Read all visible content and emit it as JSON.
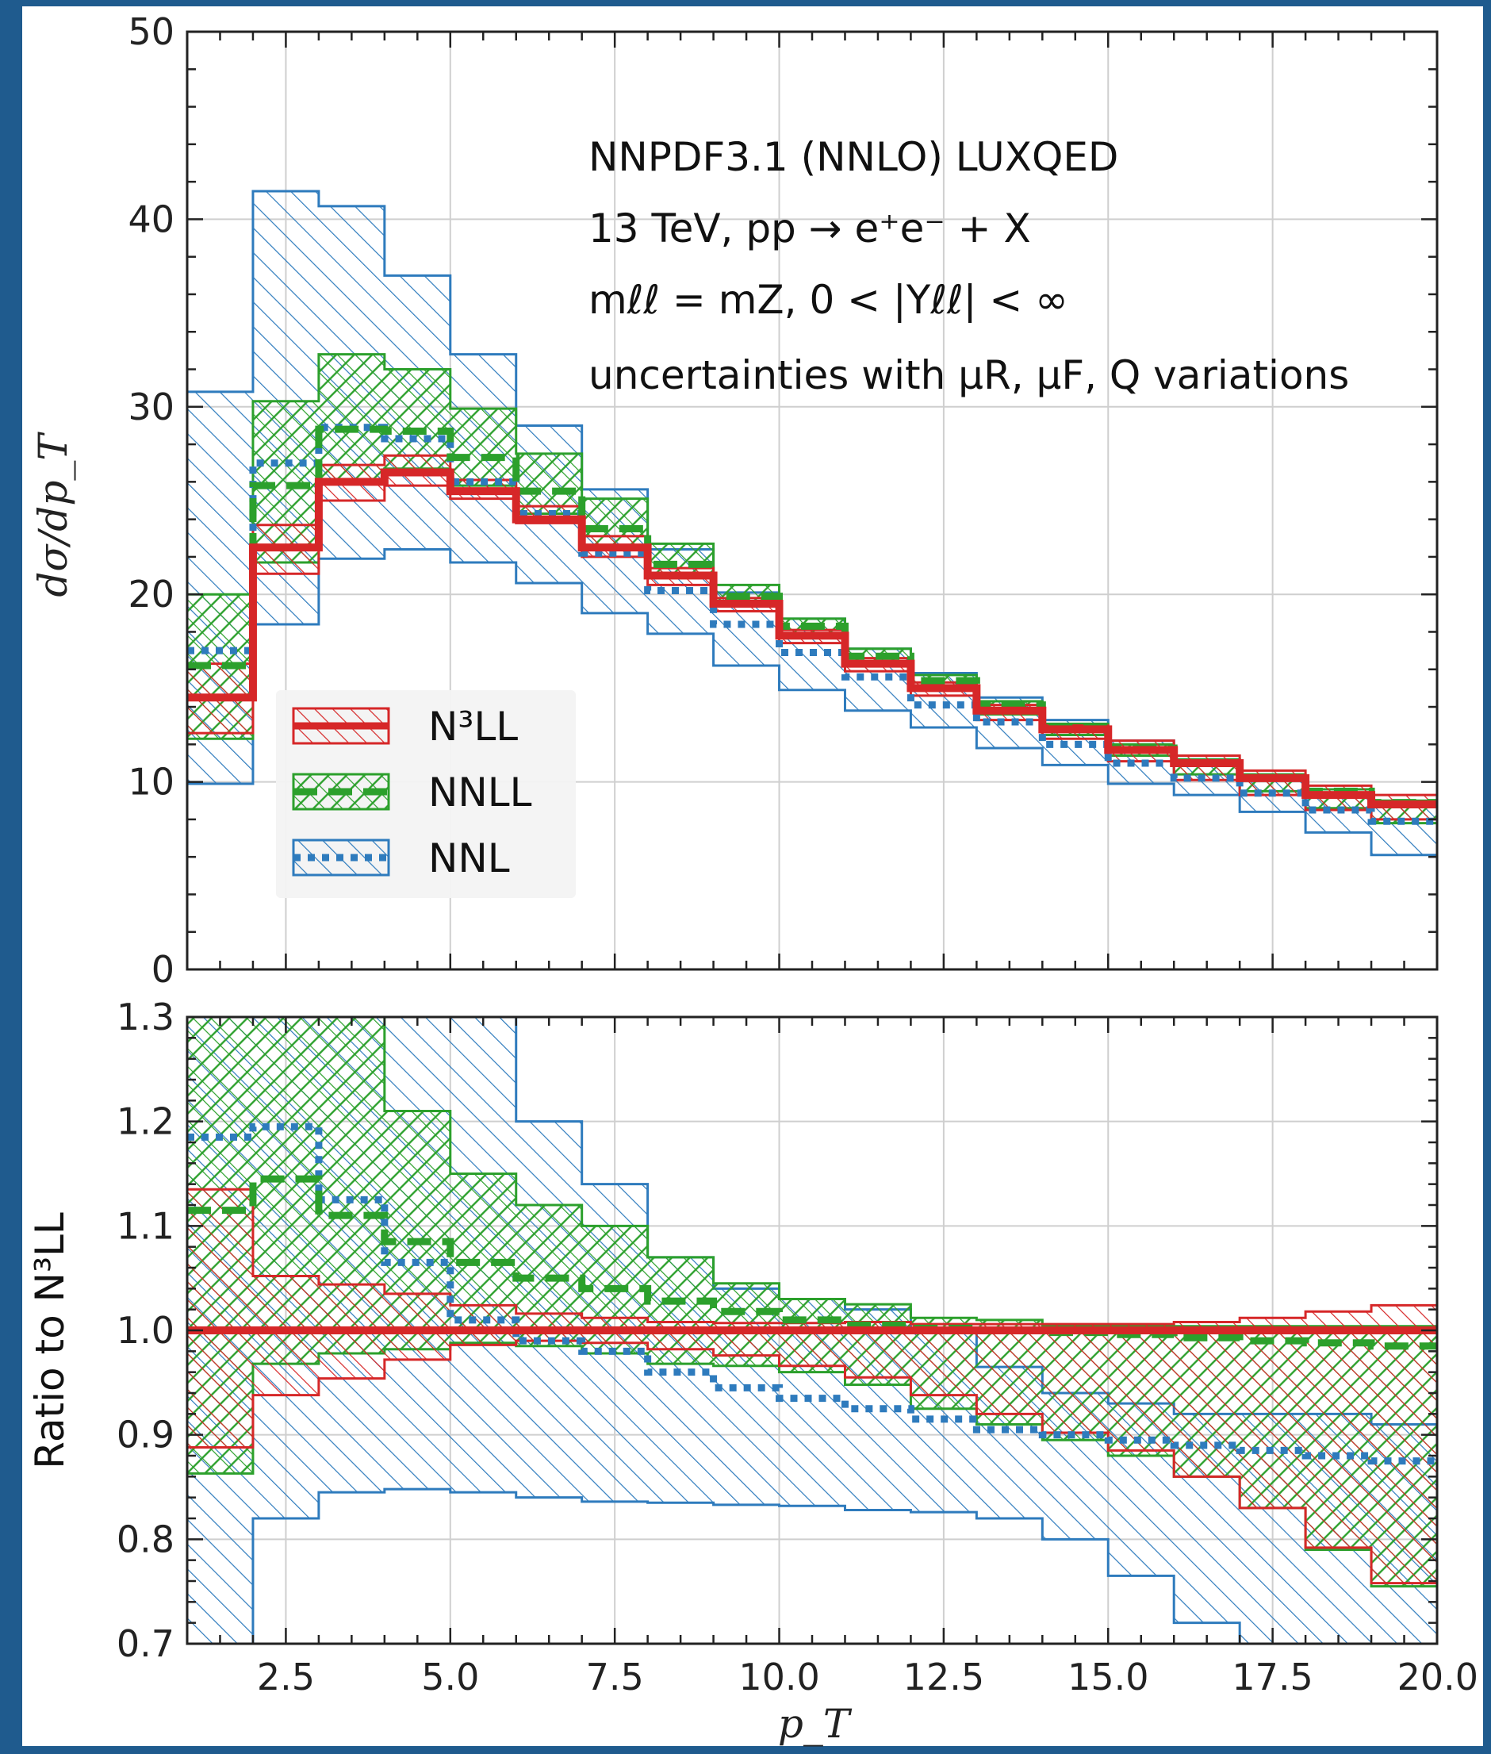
{
  "chart_data": [
    {
      "type": "line",
      "panel": "top",
      "ylabel": "dσ/dp_T",
      "ylim": [
        0,
        50
      ],
      "xlim": [
        1,
        20
      ],
      "yticks": [
        0,
        10,
        20,
        30,
        40,
        50
      ],
      "grid": true,
      "legend_position": "left",
      "annotations": [
        "NNPDF3.1 (NNLO) LUXQED",
        "13 TeV, pp → e⁺e⁻ + X",
        "mℓℓ = mZ, 0 < |Yℓℓ| < ∞",
        "uncertainties with μR, μF, Q variations"
      ],
      "bin_edges": [
        1,
        2,
        3,
        4,
        5,
        6,
        7,
        8,
        9,
        10,
        11,
        12,
        13,
        14,
        15,
        16,
        17,
        18,
        19,
        20
      ],
      "series": [
        {
          "name": "N³LL",
          "color": "#d62728",
          "style": "solid",
          "values": [
            14.5,
            22.5,
            26,
            26.5,
            25.5,
            24,
            22.5,
            21,
            19.5,
            17.8,
            16.3,
            15,
            13.8,
            12.8,
            11.7,
            11,
            10.2,
            9.3,
            8.8
          ],
          "upper": [
            16.3,
            23.7,
            26.9,
            27.4,
            26.1,
            24.7,
            23.1,
            21.4,
            19.8,
            18.1,
            16.6,
            15.3,
            14.1,
            13,
            12.2,
            11.4,
            10.6,
            9.8,
            9.3
          ],
          "lower": [
            12.6,
            21.1,
            25,
            25.8,
            25.1,
            23.8,
            22,
            20.5,
            19.1,
            17.4,
            15.9,
            14.6,
            13.3,
            12.3,
            11.1,
            10.1,
            9.3,
            8.5,
            8
          ]
        },
        {
          "name": "NNLL",
          "color": "#2ca02c",
          "style": "dashed",
          "values": [
            16.2,
            25.8,
            28.8,
            28.7,
            27.3,
            25.5,
            23.5,
            21.6,
            19.9,
            18.3,
            16.7,
            15.4,
            14.1,
            12.9,
            11.8,
            11,
            10.2,
            9.5,
            8.9
          ],
          "upper": [
            20,
            30.3,
            32.8,
            32,
            29.9,
            27.5,
            25.1,
            22.7,
            20.5,
            18.7,
            17.1,
            15.7,
            14.3,
            13.1,
            12,
            11.2,
            10.4,
            9.6,
            9
          ],
          "lower": [
            12.3,
            21.7,
            26.1,
            26.7,
            25.8,
            24.3,
            22.6,
            20.9,
            19.4,
            17.9,
            16.3,
            15,
            13.6,
            12.5,
            11.4,
            10.4,
            9.5,
            8.6,
            7.8
          ]
        },
        {
          "name": "NNL",
          "color": "#2e7bbd",
          "style": "dotted",
          "values": [
            17,
            27,
            28.9,
            28.3,
            26,
            24.3,
            22.2,
            20.2,
            18.4,
            16.9,
            15.6,
            14.1,
            13.2,
            12,
            11,
            10.2,
            9.4,
            8.5,
            7.9
          ],
          "upper": [
            30.8,
            41.5,
            40.7,
            37,
            32.8,
            29,
            25.6,
            22.4,
            20.1,
            18.7,
            17.1,
            15.8,
            14.5,
            13.3,
            12.2,
            11.2,
            10.3,
            9.4,
            8.7
          ],
          "lower": [
            9.9,
            18.4,
            21.9,
            22.4,
            21.7,
            20.6,
            19,
            17.9,
            16.2,
            14.9,
            13.8,
            12.9,
            11.8,
            10.9,
            9.9,
            9.3,
            8.4,
            7.3,
            6.1
          ]
        }
      ]
    },
    {
      "type": "line",
      "panel": "bottom",
      "xlabel": "p_T",
      "ylabel": "Ratio to N³LL",
      "ylim": [
        0.7,
        1.3
      ],
      "xlim": [
        1,
        20
      ],
      "xticks": [
        "2.5",
        "5.0",
        "7.5",
        "10.0",
        "12.5",
        "15.0",
        "17.5",
        "20.0"
      ],
      "yticks": [
        "0.7",
        "0.8",
        "0.9",
        "1.0",
        "1.1",
        "1.2",
        "1.3"
      ],
      "grid": true,
      "bin_edges": [
        1,
        2,
        3,
        4,
        5,
        6,
        7,
        8,
        9,
        10,
        11,
        12,
        13,
        14,
        15,
        16,
        17,
        18,
        19,
        20
      ],
      "series": [
        {
          "name": "N³LL",
          "color": "#d62728",
          "style": "solid",
          "values": [
            1,
            1,
            1,
            1,
            1,
            1,
            1,
            1,
            1,
            1,
            1,
            1,
            1,
            1,
            1,
            1,
            1,
            1,
            1
          ],
          "upper": [
            1.135,
            1.052,
            1.044,
            1.035,
            1.024,
            1.016,
            1.012,
            1.008,
            1.007,
            1.007,
            1.008,
            1.006,
            1.006,
            1.006,
            1.006,
            1.008,
            1.012,
            1.018,
            1.024
          ],
          "lower": [
            0.888,
            0.938,
            0.954,
            0.972,
            0.986,
            0.99,
            0.988,
            0.982,
            0.976,
            0.966,
            0.955,
            0.938,
            0.92,
            0.902,
            0.885,
            0.86,
            0.83,
            0.792,
            0.758
          ]
        },
        {
          "name": "NNLL",
          "color": "#2ca02c",
          "style": "dashed",
          "values": [
            1.115,
            1.145,
            1.11,
            1.085,
            1.065,
            1.05,
            1.04,
            1.028,
            1.018,
            1.01,
            1.005,
            1.002,
            1,
            0.998,
            0.996,
            0.993,
            0.99,
            0.988,
            0.985
          ],
          "upper": [
            1.3,
            1.3,
            1.3,
            1.21,
            1.15,
            1.12,
            1.1,
            1.07,
            1.045,
            1.03,
            1.025,
            1.012,
            1.01,
            1.004,
            1.004,
            1.004,
            1.004,
            1.004,
            1.004
          ],
          "lower": [
            0.863,
            0.968,
            0.978,
            0.982,
            0.988,
            0.985,
            0.978,
            0.968,
            0.966,
            0.96,
            0.948,
            0.925,
            0.91,
            0.895,
            0.88,
            0.86,
            0.83,
            0.79,
            0.755
          ]
        },
        {
          "name": "NNL",
          "color": "#2e7bbd",
          "style": "dotted",
          "values": [
            1.185,
            1.195,
            1.125,
            1.065,
            1.01,
            0.99,
            0.98,
            0.96,
            0.945,
            0.935,
            0.925,
            0.915,
            0.905,
            0.9,
            0.895,
            0.89,
            0.885,
            0.88,
            0.875
          ],
          "upper": [
            1.3,
            1.3,
            1.3,
            1.3,
            1.3,
            1.2,
            1.14,
            1.07,
            1.04,
            1.03,
            1.02,
            1.0,
            0.965,
            0.94,
            0.93,
            0.92,
            0.92,
            0.92,
            0.91
          ],
          "lower": [
            0.7,
            0.82,
            0.845,
            0.848,
            0.845,
            0.84,
            0.836,
            0.835,
            0.833,
            0.832,
            0.828,
            0.826,
            0.82,
            0.8,
            0.765,
            0.72,
            0.7,
            0.7,
            0.7
          ]
        }
      ]
    }
  ]
}
